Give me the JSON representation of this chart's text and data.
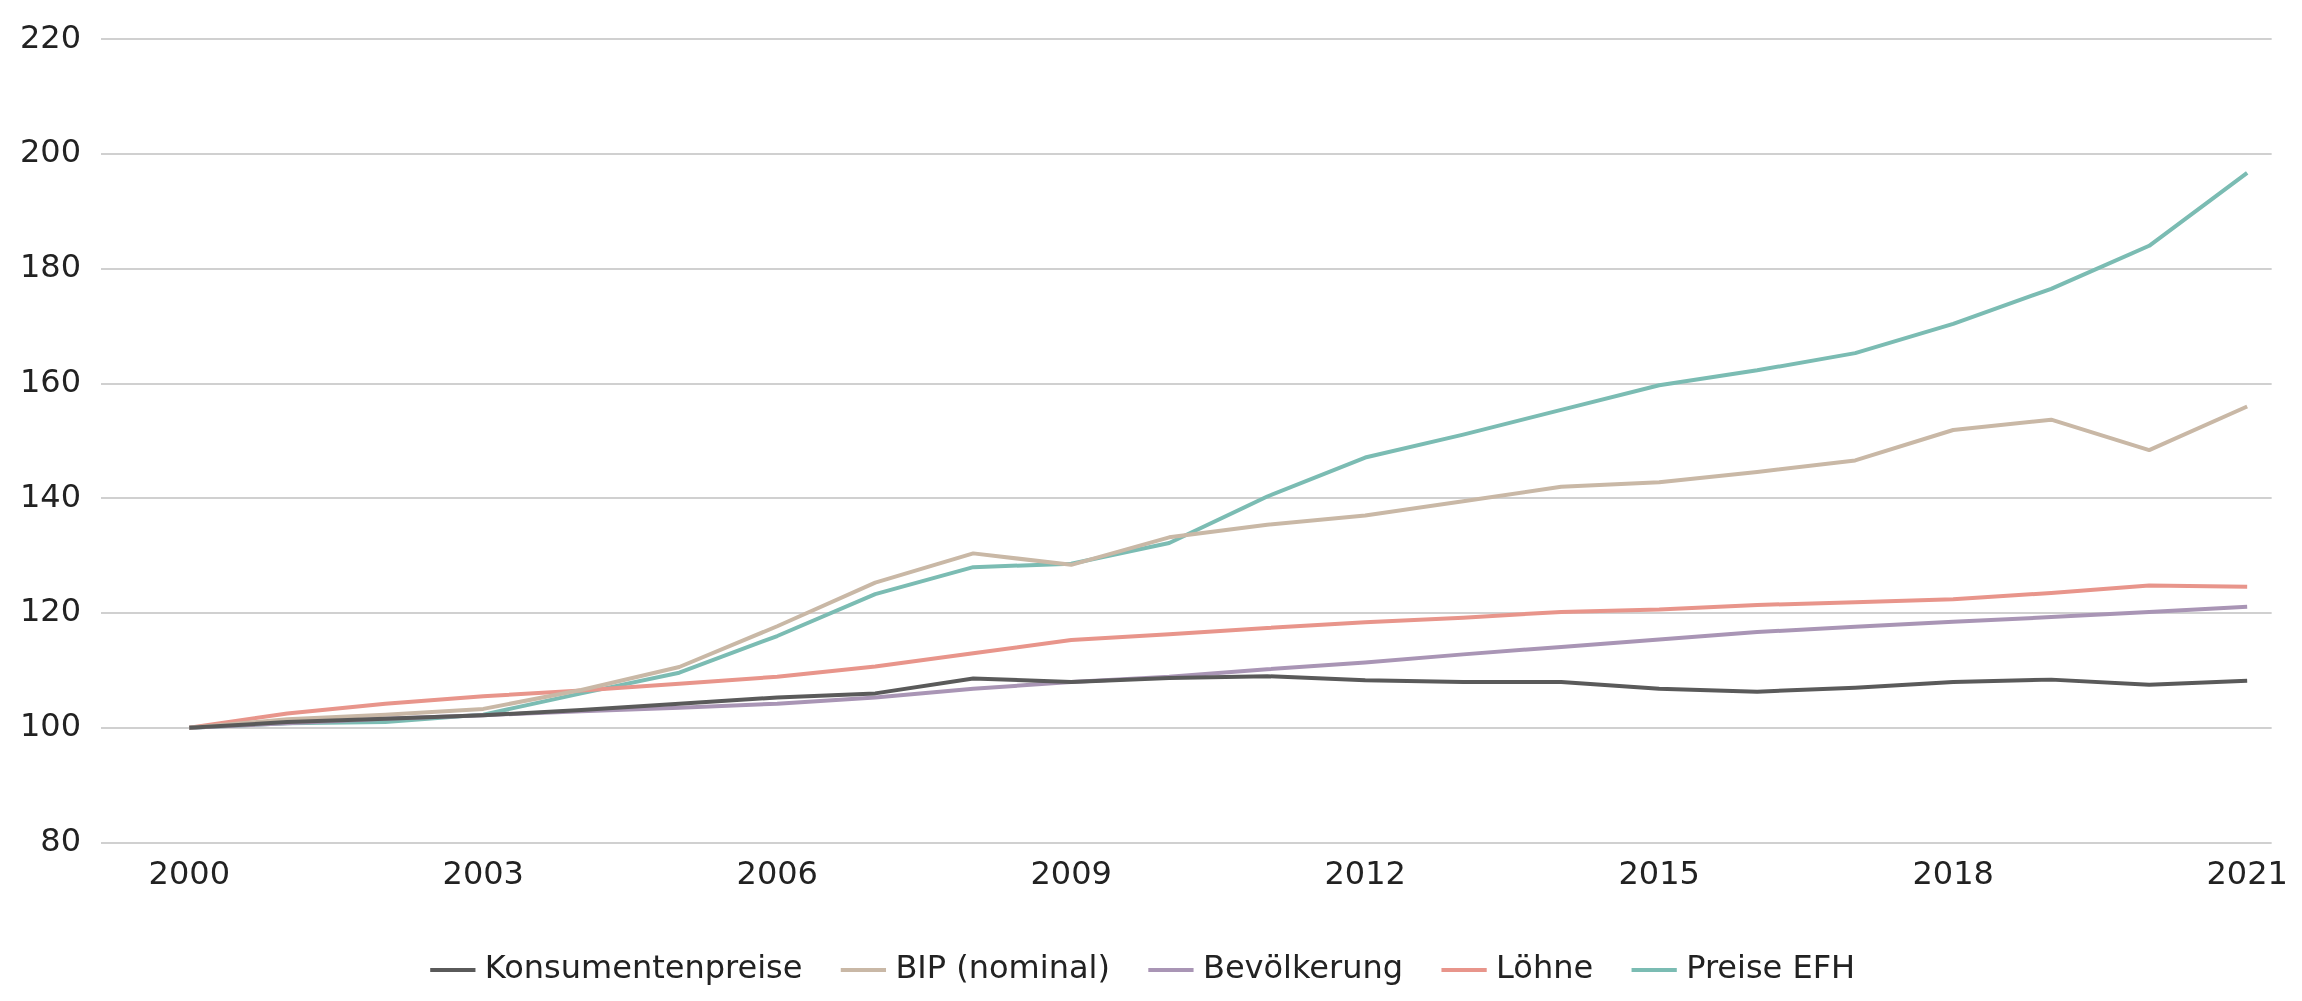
{
  "chart_data": {
    "type": "line",
    "x": [
      2000,
      2001,
      2002,
      2003,
      2004,
      2005,
      2006,
      2007,
      2008,
      2009,
      2010,
      2011,
      2012,
      2013,
      2014,
      2015,
      2016,
      2017,
      2018,
      2019,
      2020,
      2021
    ],
    "xlim": [
      1999.1,
      2021.25
    ],
    "xticks": [
      2000,
      2003,
      2006,
      2009,
      2012,
      2015,
      2018,
      2021
    ],
    "ylim": [
      80,
      220
    ],
    "yticks": [
      80,
      100,
      120,
      140,
      160,
      180,
      200,
      220
    ],
    "grid": "y",
    "legend": "bottom",
    "marker": "none",
    "line_style": "solid",
    "series": [
      {
        "name": "Konsumentenpreise",
        "color": "#5a5a5a",
        "values": [
          100,
          101,
          101.6,
          102.2,
          103.1,
          104.2,
          105.3,
          106,
          108.6,
          108,
          108.7,
          109,
          108.3,
          108,
          108,
          106.8,
          106.3,
          107,
          108,
          108.4,
          107.5,
          108.2
        ]
      },
      {
        "name": "BIP (nominal)",
        "color": "#c9b8a6",
        "values": [
          100,
          101.5,
          102.3,
          103.3,
          106.6,
          110.6,
          117.7,
          125.3,
          130.4,
          128.4,
          133.2,
          135.4,
          137,
          139.5,
          142,
          142.8,
          144.6,
          146.6,
          151.9,
          153.7,
          148.4,
          156
        ]
      },
      {
        "name": "Bevölkerung",
        "color": "#a995b5",
        "values": [
          100,
          100.8,
          101.6,
          102.2,
          102.9,
          103.5,
          104.2,
          105.3,
          106.8,
          108,
          108.9,
          110.2,
          111.4,
          112.8,
          114.1,
          115.4,
          116.7,
          117.6,
          118.5,
          119.3,
          120.2,
          121.1
        ]
      },
      {
        "name": "Löhne",
        "color": "#e8958b",
        "values": [
          100,
          102.5,
          104.2,
          105.5,
          106.5,
          107.7,
          108.9,
          110.7,
          113,
          115.3,
          116.3,
          117.4,
          118.4,
          119.2,
          120.2,
          120.6,
          121.4,
          121.9,
          122.4,
          123.5,
          124.8,
          124.6
        ]
      },
      {
        "name": "Preise EFH",
        "color": "#7bbcb3",
        "values": [
          100,
          100.8,
          101,
          102.3,
          106,
          109.6,
          116,
          123.3,
          128,
          128.6,
          132.2,
          140.3,
          147.1,
          151.1,
          155.4,
          159.7,
          162.3,
          165.3,
          170.4,
          176.5,
          184,
          196.7
        ]
      }
    ]
  }
}
